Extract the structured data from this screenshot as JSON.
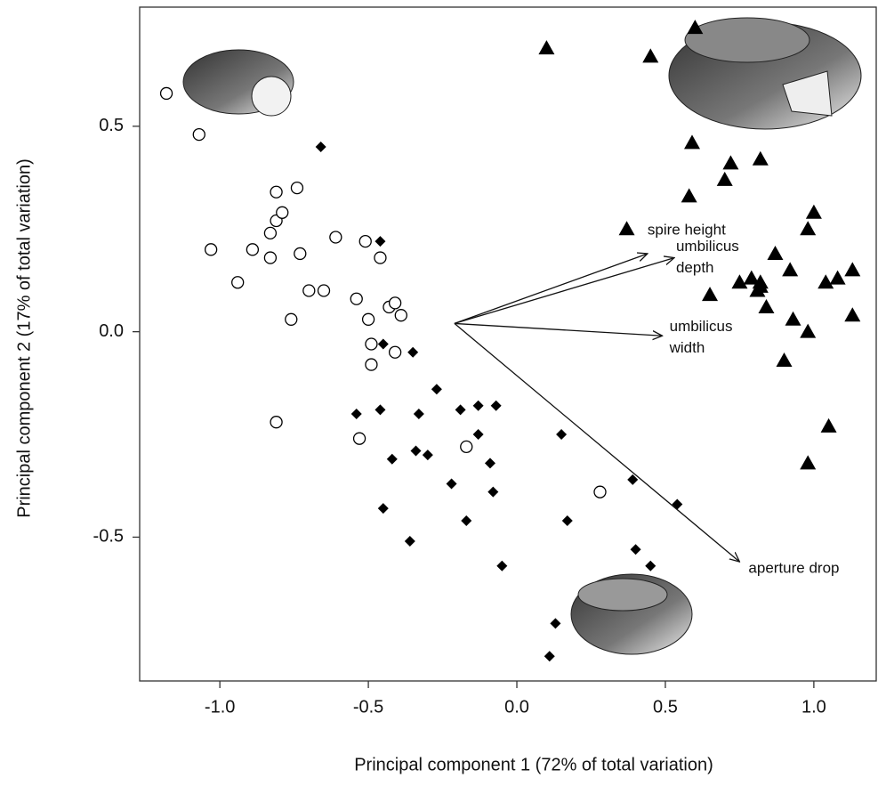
{
  "chart_data": {
    "type": "scatter",
    "x_label": "Principal component 1 (72% of total variation)",
    "y_label": "Principal component 2 (17% of total variation)",
    "xlim": [
      -1.27,
      1.21
    ],
    "ylim": [
      -0.85,
      0.79
    ],
    "xticks": [
      {
        "value": -1,
        "label": "-1.0"
      },
      -0.5,
      {
        "value": 0,
        "label": "0.0"
      },
      0.5,
      {
        "value": 1,
        "label": "1.0"
      }
    ],
    "yticks": [
      -0.5,
      {
        "value": 0,
        "label": "0.0"
      },
      0.5
    ],
    "grid": false,
    "series": [
      {
        "marker": "open-circle",
        "color": "#000000",
        "x": [
          -1.18,
          -1.07,
          -1.03,
          -0.94,
          -0.89,
          -0.83,
          -0.83,
          -0.81,
          -0.79,
          -0.81,
          -0.74,
          -0.73,
          -0.76,
          -0.7,
          -0.65,
          -0.61,
          -0.54,
          -0.51,
          -0.46,
          -0.5,
          -0.49,
          -0.49,
          -0.43,
          -0.41,
          -0.39,
          -0.41,
          -0.81,
          -0.53,
          -0.17,
          0.28
        ],
        "y": [
          0.58,
          0.48,
          0.2,
          0.12,
          0.2,
          0.18,
          0.24,
          0.27,
          0.29,
          0.34,
          0.35,
          0.19,
          0.03,
          0.1,
          0.1,
          0.23,
          0.08,
          0.22,
          0.18,
          0.03,
          -0.03,
          -0.08,
          0.06,
          0.07,
          0.04,
          -0.05,
          -0.22,
          -0.26,
          -0.28,
          -0.39
        ]
      },
      {
        "marker": "diamond",
        "color": "#000000",
        "x": [
          -0.66,
          -0.46,
          -0.45,
          -0.35,
          -0.27,
          -0.54,
          -0.46,
          -0.33,
          -0.19,
          -0.13,
          -0.07,
          -0.13,
          -0.34,
          -0.3,
          -0.42,
          -0.09,
          -0.22,
          -0.08,
          -0.45,
          -0.17,
          -0.36,
          -0.05,
          0.15,
          0.17,
          0.39,
          0.54,
          0.4,
          0.45,
          0.13,
          0.11
        ],
        "y": [
          0.45,
          0.22,
          -0.03,
          -0.05,
          -0.14,
          -0.2,
          -0.19,
          -0.2,
          -0.19,
          -0.18,
          -0.18,
          -0.25,
          -0.29,
          -0.3,
          -0.31,
          -0.32,
          -0.37,
          -0.39,
          -0.43,
          -0.46,
          -0.51,
          -0.57,
          -0.25,
          -0.46,
          -0.36,
          -0.42,
          -0.53,
          -0.57,
          -0.71,
          -0.79
        ]
      },
      {
        "marker": "triangle",
        "color": "#000000",
        "x": [
          0.1,
          0.45,
          0.6,
          0.59,
          0.58,
          0.72,
          0.7,
          0.82,
          0.37,
          1.0,
          0.98,
          0.87,
          0.92,
          1.13,
          1.08,
          1.04,
          0.75,
          0.79,
          0.82,
          0.82,
          0.81,
          0.65,
          0.84,
          0.93,
          1.13,
          0.98,
          0.9,
          1.05,
          0.98
        ],
        "y": [
          0.69,
          0.67,
          0.74,
          0.46,
          0.33,
          0.41,
          0.37,
          0.42,
          0.25,
          0.29,
          0.25,
          0.19,
          0.15,
          0.15,
          0.13,
          0.12,
          0.12,
          0.13,
          0.12,
          0.11,
          0.1,
          0.09,
          0.06,
          0.03,
          0.04,
          0.0,
          -0.07,
          -0.23,
          -0.32
        ]
      }
    ],
    "loadings_origin": {
      "x": -0.21,
      "y": 0.02
    },
    "loadings": [
      {
        "label": [
          "spire height"
        ],
        "x": 0.44,
        "y": 0.19
      },
      {
        "label": [
          "umbilicus",
          "depth"
        ],
        "x": 0.53,
        "y": 0.18
      },
      {
        "label": [
          "umbilicus",
          "width"
        ],
        "x": 0.49,
        "y": -0.01
      },
      {
        "label": [
          "aperture drop"
        ],
        "x": 0.75,
        "y": -0.56
      }
    ]
  }
}
